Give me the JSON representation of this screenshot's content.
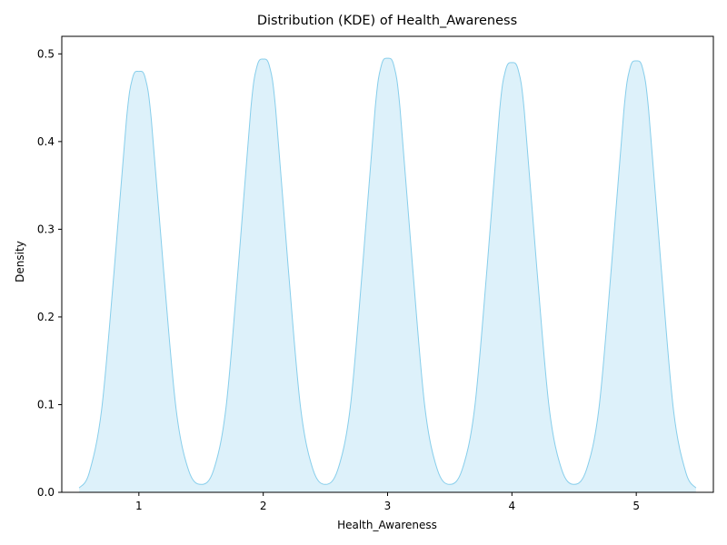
{
  "chart_data": {
    "type": "area",
    "title": "Distribution (KDE) of Health_Awareness",
    "xlabel": "Health_Awareness",
    "ylabel": "Density",
    "xlim": [
      0.38,
      5.62
    ],
    "ylim": [
      0,
      0.52
    ],
    "x_ticks": [
      1,
      2,
      3,
      4,
      5
    ],
    "y_ticks": [
      0.0,
      0.1,
      0.2,
      0.3,
      0.4,
      0.5
    ],
    "x_tick_labels": [
      "1",
      "2",
      "3",
      "4",
      "5"
    ],
    "y_tick_labels": [
      "0.0",
      "0.1",
      "0.2",
      "0.3",
      "0.4",
      "0.5"
    ],
    "grid": false,
    "legend": "none",
    "series": [
      {
        "x": [
          0.52,
          0.6,
          0.7,
          0.8,
          0.9,
          0.95,
          1.0,
          1.05,
          1.1,
          1.2,
          1.3,
          1.4,
          1.5,
          1.6,
          1.7,
          1.8,
          1.9,
          1.95,
          2.0,
          2.05,
          2.1,
          2.2,
          2.3,
          2.4,
          2.5,
          2.6,
          2.7,
          2.8,
          2.9,
          2.95,
          3.0,
          3.05,
          3.1,
          3.2,
          3.3,
          3.4,
          3.5,
          3.6,
          3.7,
          3.8,
          3.9,
          3.95,
          4.0,
          4.05,
          4.1,
          4.2,
          4.3,
          4.4,
          4.5,
          4.6,
          4.7,
          4.8,
          4.9,
          4.95,
          5.0,
          5.05,
          5.1,
          5.2,
          5.3,
          5.4,
          5.48
        ],
        "y": [
          0.005,
          0.022,
          0.094,
          0.251,
          0.425,
          0.473,
          0.48,
          0.473,
          0.425,
          0.251,
          0.094,
          0.025,
          0.009,
          0.025,
          0.096,
          0.258,
          0.437,
          0.486,
          0.494,
          0.486,
          0.437,
          0.258,
          0.097,
          0.026,
          0.009,
          0.026,
          0.097,
          0.259,
          0.438,
          0.487,
          0.495,
          0.487,
          0.438,
          0.259,
          0.097,
          0.026,
          0.009,
          0.026,
          0.096,
          0.256,
          0.434,
          0.482,
          0.49,
          0.482,
          0.434,
          0.256,
          0.096,
          0.026,
          0.009,
          0.026,
          0.096,
          0.257,
          0.435,
          0.484,
          0.492,
          0.484,
          0.435,
          0.257,
          0.093,
          0.022,
          0.005
        ],
        "line_color": "#87ceeb",
        "fill_color": "#ddf1fa"
      }
    ]
  }
}
